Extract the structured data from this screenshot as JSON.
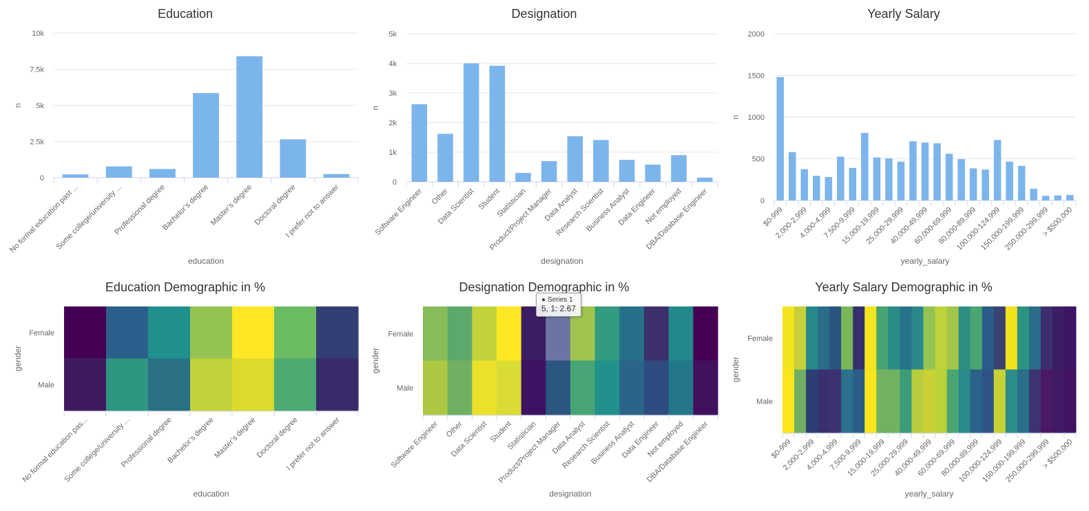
{
  "charts": {
    "education_bar": {
      "type": "bar",
      "title": "Education",
      "xlabel": "education",
      "ylabel": "n",
      "color": "#7cb5ec",
      "categories": [
        "No formal education past ...",
        "Some college/university ...",
        "Professional degree",
        "Bachelor’s degree",
        "Master’s degree",
        "Doctoral degree",
        "I prefer not to answer"
      ],
      "values": [
        230,
        780,
        600,
        5850,
        8400,
        2650,
        250
      ],
      "ylim": [
        0,
        10000
      ],
      "yticks": [
        0,
        2500,
        5000,
        7500,
        10000
      ],
      "ytick_labels": [
        "0",
        "2.5k",
        "5k",
        "7.5k",
        "10k"
      ],
      "grid": true
    },
    "designation_bar": {
      "type": "bar",
      "title": "Designation",
      "xlabel": "designation",
      "ylabel": "n",
      "color": "#7cb5ec",
      "categories": [
        "Software Engineer",
        "Other",
        "Data Scientist",
        "Student",
        "Statistician",
        "Product/Project Manager",
        "Data Analyst",
        "Research Scientist",
        "Business Analyst",
        "Data Engineer",
        "Not employed",
        "DBA/Database Engineer"
      ],
      "values": [
        2620,
        1620,
        4000,
        3920,
        300,
        700,
        1540,
        1410,
        740,
        580,
        900,
        140
      ],
      "ylim": [
        0,
        5000
      ],
      "yticks": [
        0,
        1000,
        2000,
        3000,
        4000,
        5000
      ],
      "ytick_labels": [
        "0",
        "1k",
        "2k",
        "3k",
        "4k",
        "5k"
      ],
      "grid": true
    },
    "salary_bar": {
      "type": "bar",
      "title": "Yearly Salary",
      "xlabel": "yearly_salary",
      "ylabel": "n",
      "color": "#7cb5ec",
      "n_categories": 25,
      "visible_tick_labels": [
        "$0-999",
        "2,000-2,999",
        "4,000-4,999",
        "7,500-9,999",
        "15,000-19,999",
        "25,000-29,999",
        "40,000-49,999",
        "60,000-69,999",
        "80,000-89,999",
        "100,000-124,999",
        "150,000-199,999",
        "250,000-299,999",
        "> $500,000"
      ],
      "values": [
        1480,
        580,
        375,
        295,
        280,
        525,
        390,
        810,
        515,
        505,
        465,
        710,
        695,
        685,
        560,
        495,
        385,
        370,
        725,
        465,
        415,
        140,
        55,
        60,
        65
      ],
      "ylim": [
        0,
        2000
      ],
      "yticks": [
        0,
        500,
        1000,
        1500,
        2000
      ],
      "ytick_labels": [
        "0",
        "500",
        "1000",
        "1500",
        "2000"
      ],
      "grid": true
    },
    "education_heat": {
      "type": "heatmap",
      "title": "Education Demographic in %",
      "xlabel": "education",
      "ylabel": "gender",
      "rows": [
        "Female",
        "Male"
      ],
      "categories": [
        "No formal education pas...",
        "Some college/university ...",
        "Professional degree",
        "Bachelor’s degree",
        "Master’s degree",
        "Doctoral degree",
        "I prefer not to answer"
      ],
      "colors": [
        [
          "#440154",
          "#2c5f8c",
          "#20908d",
          "#93c452",
          "#fde725",
          "#6cbc63",
          "#333f74"
        ],
        [
          "#3f1b5e",
          "#2e9681",
          "#2b7186",
          "#c2d23a",
          "#dbdb2c",
          "#4daa73",
          "#3b2a6b"
        ]
      ]
    },
    "designation_heat": {
      "type": "heatmap",
      "title": "Designation Demographic in %",
      "xlabel": "designation",
      "ylabel": "gender",
      "rows": [
        "Female",
        "Male"
      ],
      "categories": [
        "Software Engineer",
        "Other",
        "Data Scientist",
        "Student",
        "Statistician",
        "Product/Project Manager",
        "Data Analyst",
        "Research Scientist",
        "Business Analyst",
        "Data Engineer",
        "Not employed",
        "DBA/Database Engineer"
      ],
      "colors": [
        [
          "#86bd58",
          "#5da96b",
          "#c2d23a",
          "#fde725",
          "#3a1e63",
          "#6b75a4",
          "#9ec44d",
          "#339b7f",
          "#27708a",
          "#3d2f6c",
          "#21898c",
          "#440154"
        ],
        [
          "#acc843",
          "#70b062",
          "#ebe12a",
          "#d9dc34",
          "#3d1263",
          "#2b567f",
          "#46a475",
          "#21918c",
          "#2a6488",
          "#2e4c7f",
          "#24778b",
          "#41115e"
        ]
      ],
      "tooltip": {
        "series": "Series 1",
        "text": "5, 1: 2.67"
      }
    },
    "salary_heat": {
      "type": "heatmap",
      "title": "Yearly Salary Demographic in %",
      "xlabel": "yearly_salary",
      "ylabel": "gender",
      "rows": [
        "Female",
        "Male"
      ],
      "n_categories": 25,
      "visible_tick_labels": [
        "$0-999",
        "2,000-2,999",
        "4,000-4,999",
        "7,500-9,999",
        "15,000-19,999",
        "25,000-29,999",
        "40,000-49,999",
        "60,000-69,999",
        "80,000-89,999",
        "100,000-124,999",
        "150,000-199,999",
        "250,000-299,999",
        "> $500,000"
      ],
      "colors": [
        [
          "#f4e41f",
          "#c8d13a",
          "#27898b",
          "#296d89",
          "#29557f",
          "#7bb75a",
          "#35306b",
          "#f3e520",
          "#47a371",
          "#2b8b86",
          "#26738a",
          "#2b878c",
          "#93c452",
          "#bed33a",
          "#a1c74a",
          "#2e8e83",
          "#4aa572",
          "#2b5c89",
          "#394271",
          "#f0e21d",
          "#2e9281",
          "#2b6c89",
          "#3e2e6d",
          "#3a1f64",
          "#3c1665"
        ],
        [
          "#fbe61b",
          "#72ae61",
          "#2c3e73",
          "#383070",
          "#3c3270",
          "#2b728d",
          "#2c5d88",
          "#f6e61b",
          "#72b162",
          "#70b162",
          "#3c9b78",
          "#b8cd3e",
          "#c9d134",
          "#bad239",
          "#4ba572",
          "#2b8a8c",
          "#2b6287",
          "#2e5385",
          "#c8d236",
          "#2d8d89",
          "#2b6f8b",
          "#3c3470",
          "#4a1966",
          "#411a65",
          "#411362"
        ]
      ]
    }
  }
}
